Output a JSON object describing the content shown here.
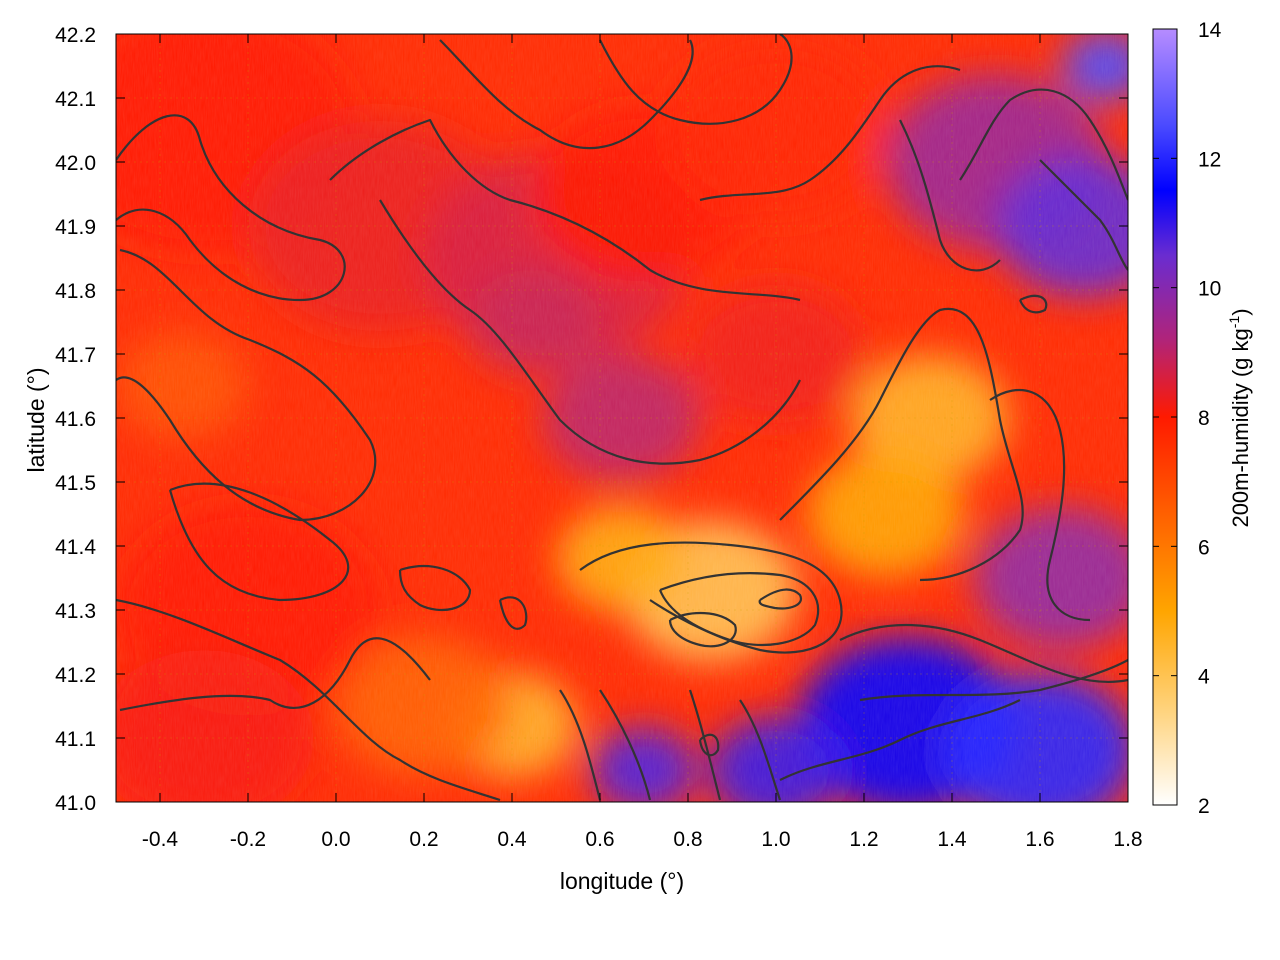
{
  "chart_data": {
    "type": "heatmap",
    "xlabel": "longitude (°)",
    "ylabel": "latitude (°)",
    "xlim": [
      -0.5,
      1.8
    ],
    "ylim": [
      41.0,
      42.2
    ],
    "x_ticks": [
      "-0.4",
      "-0.2",
      "0.0",
      "0.2",
      "0.4",
      "0.6",
      "0.8",
      "1.0",
      "1.2",
      "1.4",
      "1.6",
      "1.8"
    ],
    "x_tick_values": [
      -0.4,
      -0.2,
      0.0,
      0.2,
      0.4,
      0.6,
      0.8,
      1.0,
      1.2,
      1.4,
      1.6,
      1.8
    ],
    "y_ticks": [
      "41.0",
      "41.1",
      "41.2",
      "41.3",
      "41.4",
      "41.5",
      "41.6",
      "41.7",
      "41.8",
      "41.9",
      "42.0",
      "42.1",
      "42.2"
    ],
    "y_tick_values": [
      41.0,
      41.1,
      41.2,
      41.3,
      41.4,
      41.5,
      41.6,
      41.7,
      41.8,
      41.9,
      42.0,
      42.1,
      42.2
    ],
    "colorbar": {
      "label": "200m-humidity (g kg-1)",
      "label_main": "200m-humidity (g kg",
      "label_sup": "-1",
      "label_end": ")",
      "range": [
        2,
        14
      ],
      "ticks": [
        "2",
        "4",
        "6",
        "8",
        "10",
        "12",
        "14"
      ],
      "tick_values": [
        2,
        4,
        6,
        8,
        10,
        12,
        14
      ],
      "colors": [
        {
          "v": 2,
          "c": "#ffffff"
        },
        {
          "v": 3.5,
          "c": "#ffd27a"
        },
        {
          "v": 5,
          "c": "#ffa500"
        },
        {
          "v": 6.5,
          "c": "#ff6000"
        },
        {
          "v": 8,
          "c": "#ff1a00"
        },
        {
          "v": 9.2,
          "c": "#b0247a"
        },
        {
          "v": 10.5,
          "c": "#6a2cd0"
        },
        {
          "v": 11.5,
          "c": "#0000ff"
        },
        {
          "v": 12.5,
          "c": "#4a4aff"
        },
        {
          "v": 14,
          "c": "#b68cff"
        }
      ]
    },
    "grid": true,
    "field_regions": [
      {
        "x": -0.3,
        "y": 42.05,
        "value": 8.0,
        "r": 0.35
      },
      {
        "x": 0.1,
        "y": 41.9,
        "value": 8.3,
        "r": 0.3
      },
      {
        "x": 0.5,
        "y": 41.85,
        "value": 8.6,
        "r": 0.3
      },
      {
        "x": 0.7,
        "y": 41.95,
        "value": 8.0,
        "r": 0.25
      },
      {
        "x": 1.0,
        "y": 42.05,
        "value": 7.8,
        "r": 0.25
      },
      {
        "x": 1.5,
        "y": 42.0,
        "value": 9.6,
        "r": 0.25
      },
      {
        "x": 1.7,
        "y": 41.9,
        "value": 10.6,
        "r": 0.2
      },
      {
        "x": 1.75,
        "y": 42.15,
        "value": 12.5,
        "r": 0.1
      },
      {
        "x": 1.35,
        "y": 41.6,
        "value": 4.6,
        "r": 0.18
      },
      {
        "x": 1.25,
        "y": 41.45,
        "value": 5.0,
        "r": 0.18
      },
      {
        "x": 0.85,
        "y": 41.33,
        "value": 4.0,
        "r": 0.2
      },
      {
        "x": 0.65,
        "y": 41.38,
        "value": 4.8,
        "r": 0.15
      },
      {
        "x": 0.4,
        "y": 41.12,
        "value": 4.5,
        "r": 0.15
      },
      {
        "x": 0.2,
        "y": 41.15,
        "value": 6.5,
        "r": 0.2
      },
      {
        "x": -0.35,
        "y": 41.65,
        "value": 6.8,
        "r": 0.15
      },
      {
        "x": 0.65,
        "y": 41.6,
        "value": 9.0,
        "r": 0.18
      },
      {
        "x": 0.45,
        "y": 41.75,
        "value": 8.8,
        "r": 0.15
      },
      {
        "x": 1.0,
        "y": 41.7,
        "value": 8.2,
        "r": 0.2
      },
      {
        "x": 1.3,
        "y": 41.12,
        "value": 11.5,
        "r": 0.25
      },
      {
        "x": 1.6,
        "y": 41.08,
        "value": 12.0,
        "r": 0.22
      },
      {
        "x": 1.65,
        "y": 41.35,
        "value": 9.8,
        "r": 0.2
      },
      {
        "x": 0.7,
        "y": 41.05,
        "value": 10.8,
        "r": 0.12
      },
      {
        "x": 1.0,
        "y": 41.05,
        "value": 11.0,
        "r": 0.15
      },
      {
        "x": -0.2,
        "y": 41.3,
        "value": 8.0,
        "r": 0.3
      },
      {
        "x": -0.3,
        "y": 41.1,
        "value": 8.1,
        "r": 0.25
      }
    ]
  }
}
